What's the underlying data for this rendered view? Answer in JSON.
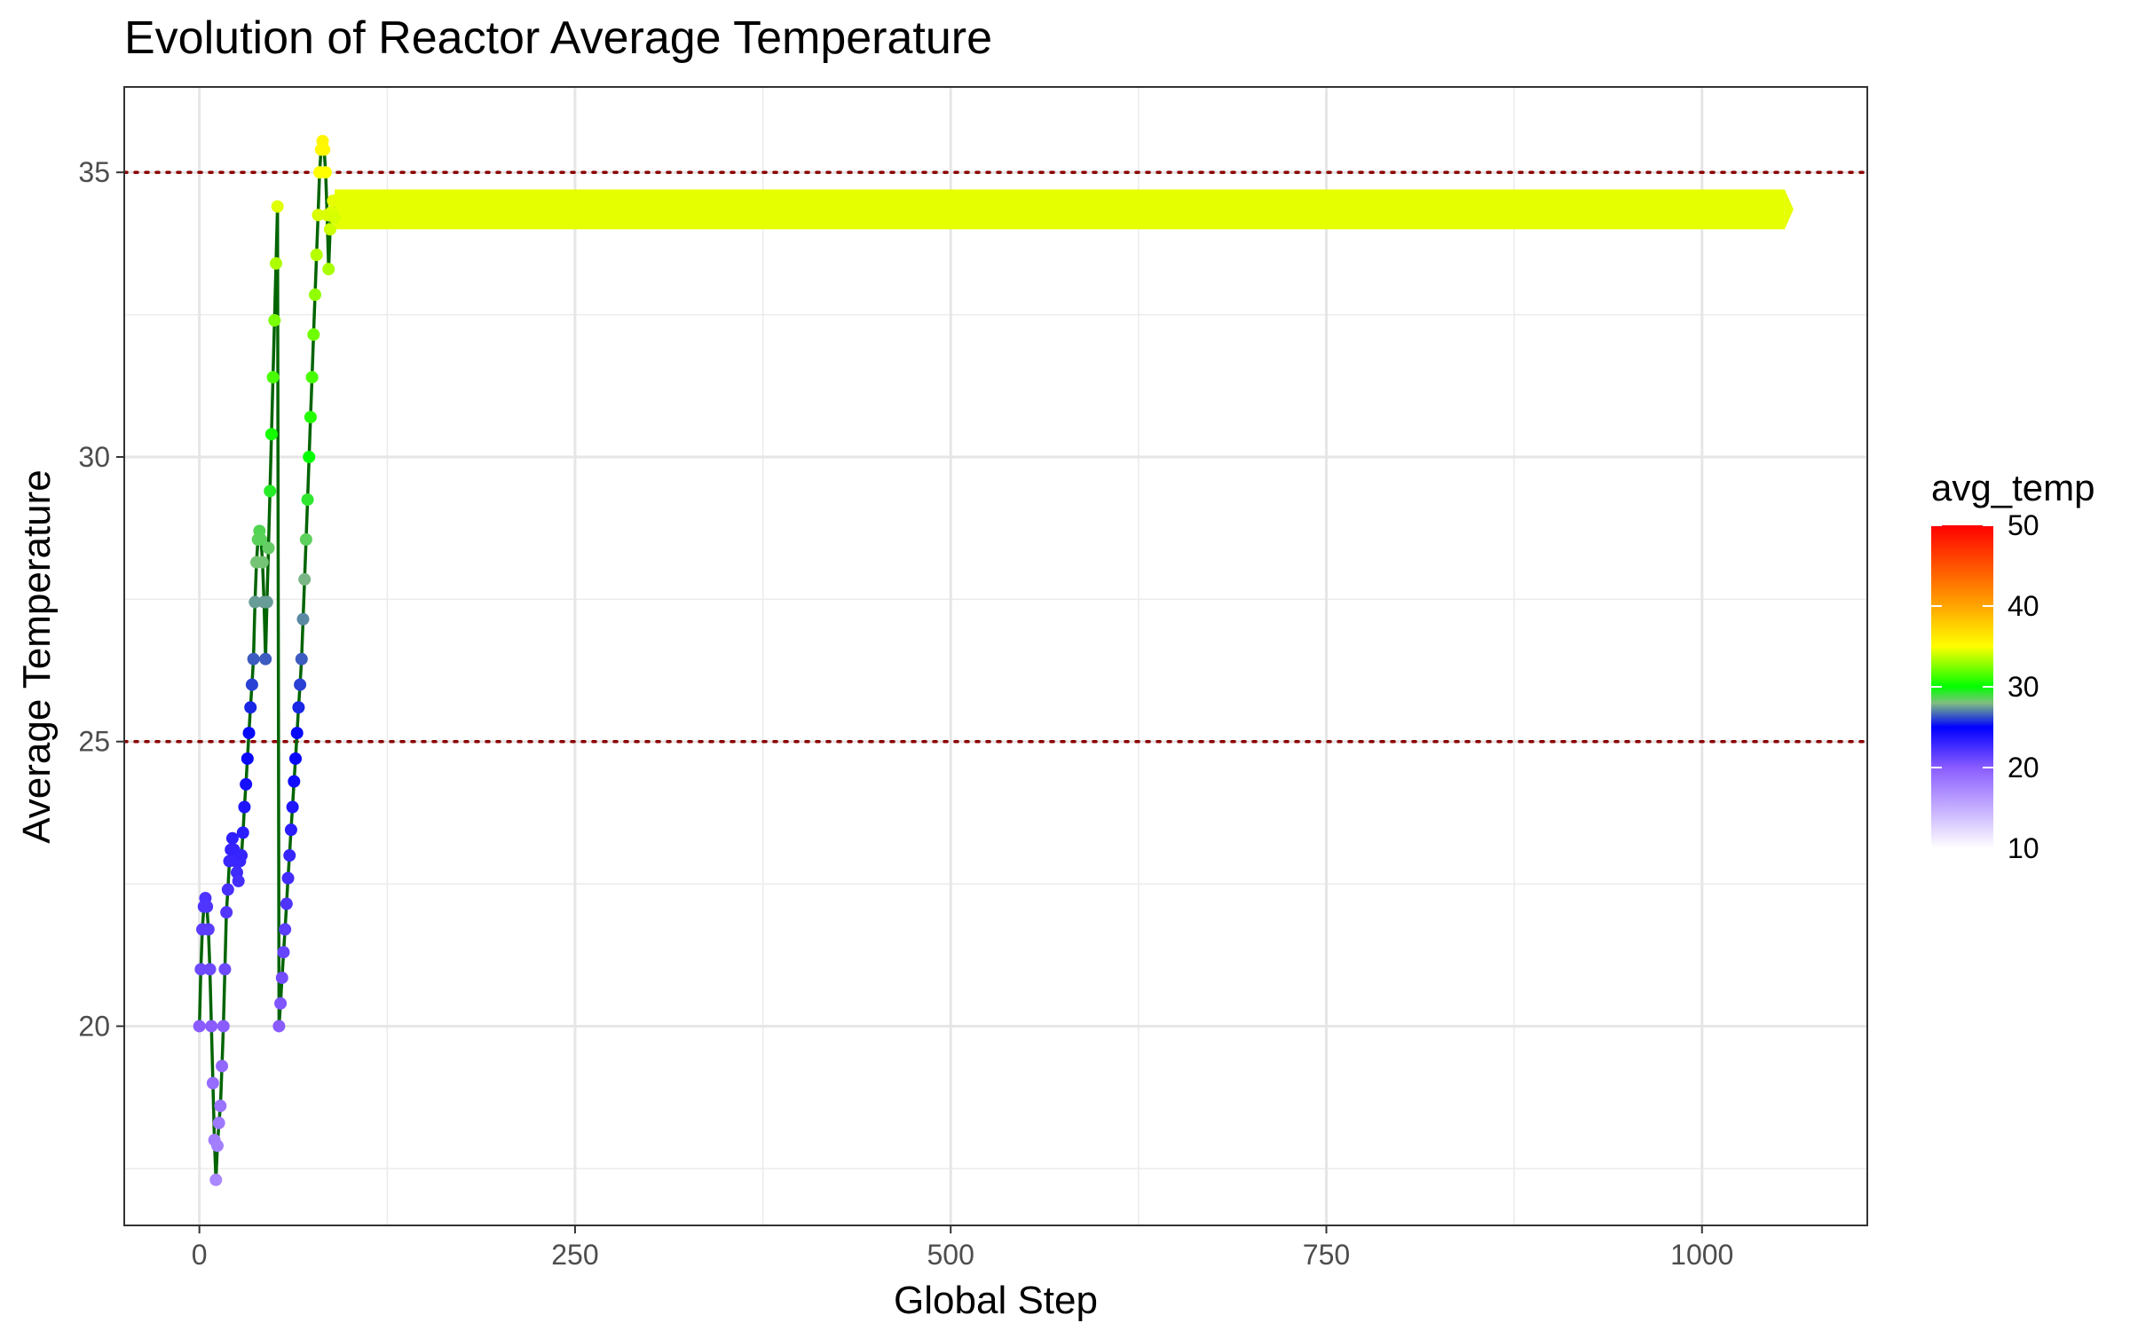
{
  "chart_data": {
    "type": "line",
    "title": "Evolution of Reactor Average Temperature",
    "xlabel": "Global Step",
    "ylabel": "Average Temperature",
    "xlim": [
      -50,
      1110
    ],
    "ylim": [
      16.5,
      36.5
    ],
    "x_ticks": [
      0,
      250,
      500,
      750,
      1000
    ],
    "x_minor_ticks": [
      125,
      375,
      625,
      875
    ],
    "y_ticks": [
      20,
      25,
      30,
      35
    ],
    "y_minor_ticks": [
      17.5,
      22.5,
      27.5,
      32.5
    ],
    "x_tick_labels": [
      "0",
      "250",
      "500",
      "750",
      "1000"
    ],
    "y_tick_labels": [
      "20",
      "25",
      "30",
      "35"
    ],
    "grid": true,
    "line_color": "#006400",
    "reference_lines": [
      {
        "y": 35,
        "style": "dotted",
        "color": "#8b0000"
      },
      {
        "y": 25,
        "style": "dotted",
        "color": "#8b0000"
      }
    ],
    "color_scale": {
      "title": "avg_temp",
      "domain": [
        10,
        50
      ],
      "breaks": [
        10,
        20,
        30,
        40,
        50
      ],
      "break_labels": [
        "10",
        "20",
        "30",
        "40",
        "50"
      ],
      "stops": [
        {
          "value": 10,
          "color": "#ffffff"
        },
        {
          "value": 20,
          "color": "#8a5cff"
        },
        {
          "value": 25,
          "color": "#0000ff"
        },
        {
          "value": 28,
          "color": "#7fbf7f"
        },
        {
          "value": 30,
          "color": "#00ff00"
        },
        {
          "value": 35,
          "color": "#ffff00"
        },
        {
          "value": 40,
          "color": "#ffa500"
        },
        {
          "value": 50,
          "color": "#ff0000"
        }
      ]
    },
    "series": [
      {
        "x": [
          0,
          1,
          2,
          3,
          4,
          5,
          6,
          7,
          8,
          9,
          10,
          11,
          12,
          13,
          14,
          15,
          16,
          17,
          18,
          19,
          20,
          21,
          22,
          23,
          24,
          25,
          26,
          27,
          28,
          29,
          30,
          31,
          32,
          33,
          34,
          35,
          36,
          37,
          38,
          39,
          40,
          41,
          42,
          43,
          44,
          45,
          46,
          47,
          48,
          49,
          50,
          51,
          52,
          53,
          54,
          55,
          56,
          57,
          58,
          59,
          60,
          61,
          62,
          63,
          64,
          65,
          66,
          67,
          68,
          69,
          70,
          71,
          72,
          73,
          74,
          75,
          76,
          77,
          78,
          79,
          80,
          81,
          82,
          83,
          84,
          85,
          86,
          87,
          88,
          89,
          90
        ],
        "y": [
          20.0,
          21.0,
          21.7,
          22.1,
          22.25,
          22.1,
          21.7,
          21.0,
          20.0,
          19.0,
          18.0,
          17.3,
          17.9,
          18.3,
          18.6,
          19.3,
          20.0,
          21.0,
          22.0,
          22.4,
          22.9,
          23.1,
          23.3,
          23.1,
          22.9,
          22.7,
          22.55,
          22.9,
          23.0,
          23.4,
          23.85,
          24.25,
          24.7,
          25.15,
          25.6,
          26.0,
          26.45,
          27.45,
          28.15,
          28.55,
          28.7,
          28.55,
          28.15,
          27.45,
          26.45,
          27.45,
          28.4,
          29.4,
          30.4,
          31.4,
          32.4,
          33.4,
          34.4,
          20.0,
          20.4,
          20.85,
          21.3,
          21.7,
          22.15,
          22.6,
          23.0,
          23.45,
          23.85,
          24.3,
          24.7,
          25.15,
          25.6,
          26.0,
          26.45,
          27.15,
          27.85,
          28.55,
          29.25,
          30.0,
          30.7,
          31.4,
          32.15,
          32.85,
          33.55,
          34.25,
          35.0,
          35.4,
          35.55,
          35.4,
          35.0,
          34.25,
          33.3,
          34.0,
          34.3,
          34.5,
          34.2
        ]
      },
      {
        "x_range": [
          90,
          1055
        ],
        "y_band": [
          34.0,
          34.7
        ],
        "color_value": 34.5,
        "description_free": true
      }
    ]
  }
}
